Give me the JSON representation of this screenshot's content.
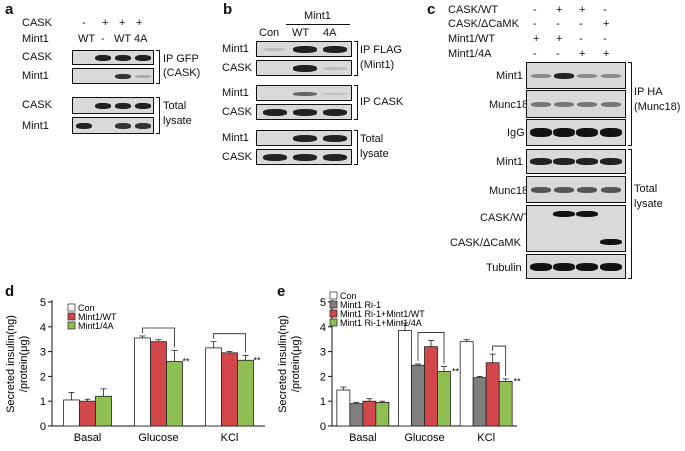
{
  "panel_a": {
    "label": "a",
    "row_labels": [
      "CASK",
      "Mint1"
    ],
    "cask_signs": [
      "-",
      "+",
      "+",
      "+"
    ],
    "mint1_signs": [
      "WT",
      "-",
      "WT",
      "4A"
    ],
    "blots": [
      "CASK",
      "Mint1",
      "CASK",
      "Mint1"
    ],
    "ip_label_1": "IP GFP",
    "ip_label_2": "(CASK)",
    "total_1": "Total",
    "total_2": "lysate"
  },
  "panel_b": {
    "label": "b",
    "group_header": "Mint1",
    "lanes": [
      "Con",
      "WT",
      "4A"
    ],
    "blots": [
      "Mint1",
      "CASK",
      "Mint1",
      "CASK",
      "Mint1",
      "CASK"
    ],
    "ip_flag_1": "IP FLAG",
    "ip_flag_2": "(Mint1)",
    "ip_cask": "IP CASK",
    "total_1": "Total",
    "total_2": "lysate"
  },
  "panel_c": {
    "label": "c",
    "row_labels": [
      "CASK/WT",
      "CASK/ΔCaMK",
      "Mint1/WT",
      "Mint1/4A"
    ],
    "signs": [
      [
        "-",
        "+",
        "+",
        "-"
      ],
      [
        "-",
        "-",
        "-",
        "+"
      ],
      [
        "+",
        "+",
        "-",
        "-"
      ],
      [
        "-",
        "-",
        "+",
        "+"
      ]
    ],
    "blots": [
      "Mint1",
      "Munc18",
      "IgG",
      "Mint1",
      "Munc18",
      "CASK/WT",
      "CASK/ΔCaMK",
      "Tubulin"
    ],
    "ip_1": "IP HA",
    "ip_2": "(Munc18)",
    "total_1": "Total",
    "total_2": "lysate"
  },
  "chart_data": [
    {
      "panel": "d",
      "type": "bar",
      "ylabel_1": "Secreted insulin(ng)",
      "ylabel_2": "/protein(μg)",
      "ylim": [
        0,
        5
      ],
      "yticks": [
        "0",
        "1",
        "2",
        "3",
        "4",
        "5"
      ],
      "categories": [
        "Basal",
        "Glucose",
        "KCl"
      ],
      "series": [
        {
          "name": "Con",
          "color": "#ffffff",
          "values": [
            1.05,
            3.55,
            3.15
          ],
          "errors": [
            0.3,
            0.08,
            0.25
          ]
        },
        {
          "name": "Mint1/WT",
          "color": "#d2474a",
          "values": [
            1.0,
            3.4,
            2.95
          ],
          "errors": [
            0.08,
            0.08,
            0.05
          ]
        },
        {
          "name": "Mint1/4A",
          "color": "#8fbf52",
          "values": [
            1.2,
            2.6,
            2.65
          ],
          "errors": [
            0.3,
            0.45,
            0.2
          ]
        }
      ],
      "significance": [
        "",
        "**",
        "**"
      ]
    },
    {
      "panel": "e",
      "type": "bar",
      "ylabel_1": "Secreted insulin(ng)",
      "ylabel_2": "/protein(μg)",
      "ylim": [
        0,
        5
      ],
      "yticks": [
        "0",
        "1",
        "2",
        "3",
        "4",
        "5"
      ],
      "categories": [
        "Basal",
        "Glucose",
        "KCl"
      ],
      "series": [
        {
          "name": "Con",
          "color": "#ffffff",
          "values": [
            1.45,
            3.85,
            3.4
          ],
          "errors": [
            0.12,
            0.3,
            0.08
          ]
        },
        {
          "name": "Mint1 Ri-1",
          "color": "#7f7f7f",
          "values": [
            0.9,
            2.45,
            1.95
          ],
          "errors": [
            0.05,
            0.05,
            0.05
          ]
        },
        {
          "name": "Mint1 Ri-1+Mint1/WT",
          "color": "#d2474a",
          "values": [
            1.0,
            3.2,
            2.55
          ],
          "errors": [
            0.1,
            0.25,
            0.35
          ]
        },
        {
          "name": "Mint1 Ri-1+Mint1/4A",
          "color": "#8fbf52",
          "values": [
            0.95,
            2.2,
            1.8
          ],
          "errors": [
            0.05,
            0.2,
            0.1
          ]
        }
      ],
      "significance": [
        "",
        "**",
        "**"
      ]
    }
  ]
}
